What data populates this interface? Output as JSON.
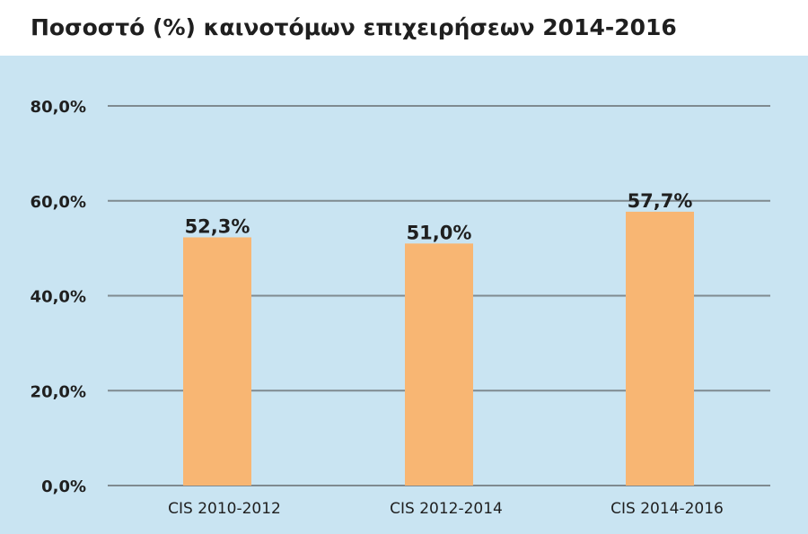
{
  "chart_data": {
    "type": "bar",
    "title": "Ποσοστό (%) καινοτόμων επιχειρήσεων 2014-2016",
    "categories": [
      "CIS 2010-2012",
      "CIS 2012-2014",
      "CIS 2014-2016"
    ],
    "values": [
      52.3,
      51.0,
      57.7
    ],
    "value_labels": [
      "52,3%",
      "51,0%",
      "57,7%"
    ],
    "xlabel": "",
    "ylabel": "",
    "ylim": [
      0,
      80
    ],
    "yticks": [
      0,
      20,
      40,
      60,
      80
    ],
    "ytick_labels": [
      "0,0%",
      "20,0%",
      "40,0%",
      "60,0%",
      "80,0%"
    ],
    "grid": true,
    "legend": "none",
    "colors": {
      "bar": "#f8b673",
      "background": "#c9e4f2",
      "gridline": "#7f8a90",
      "text": "#1f1f1f"
    }
  }
}
